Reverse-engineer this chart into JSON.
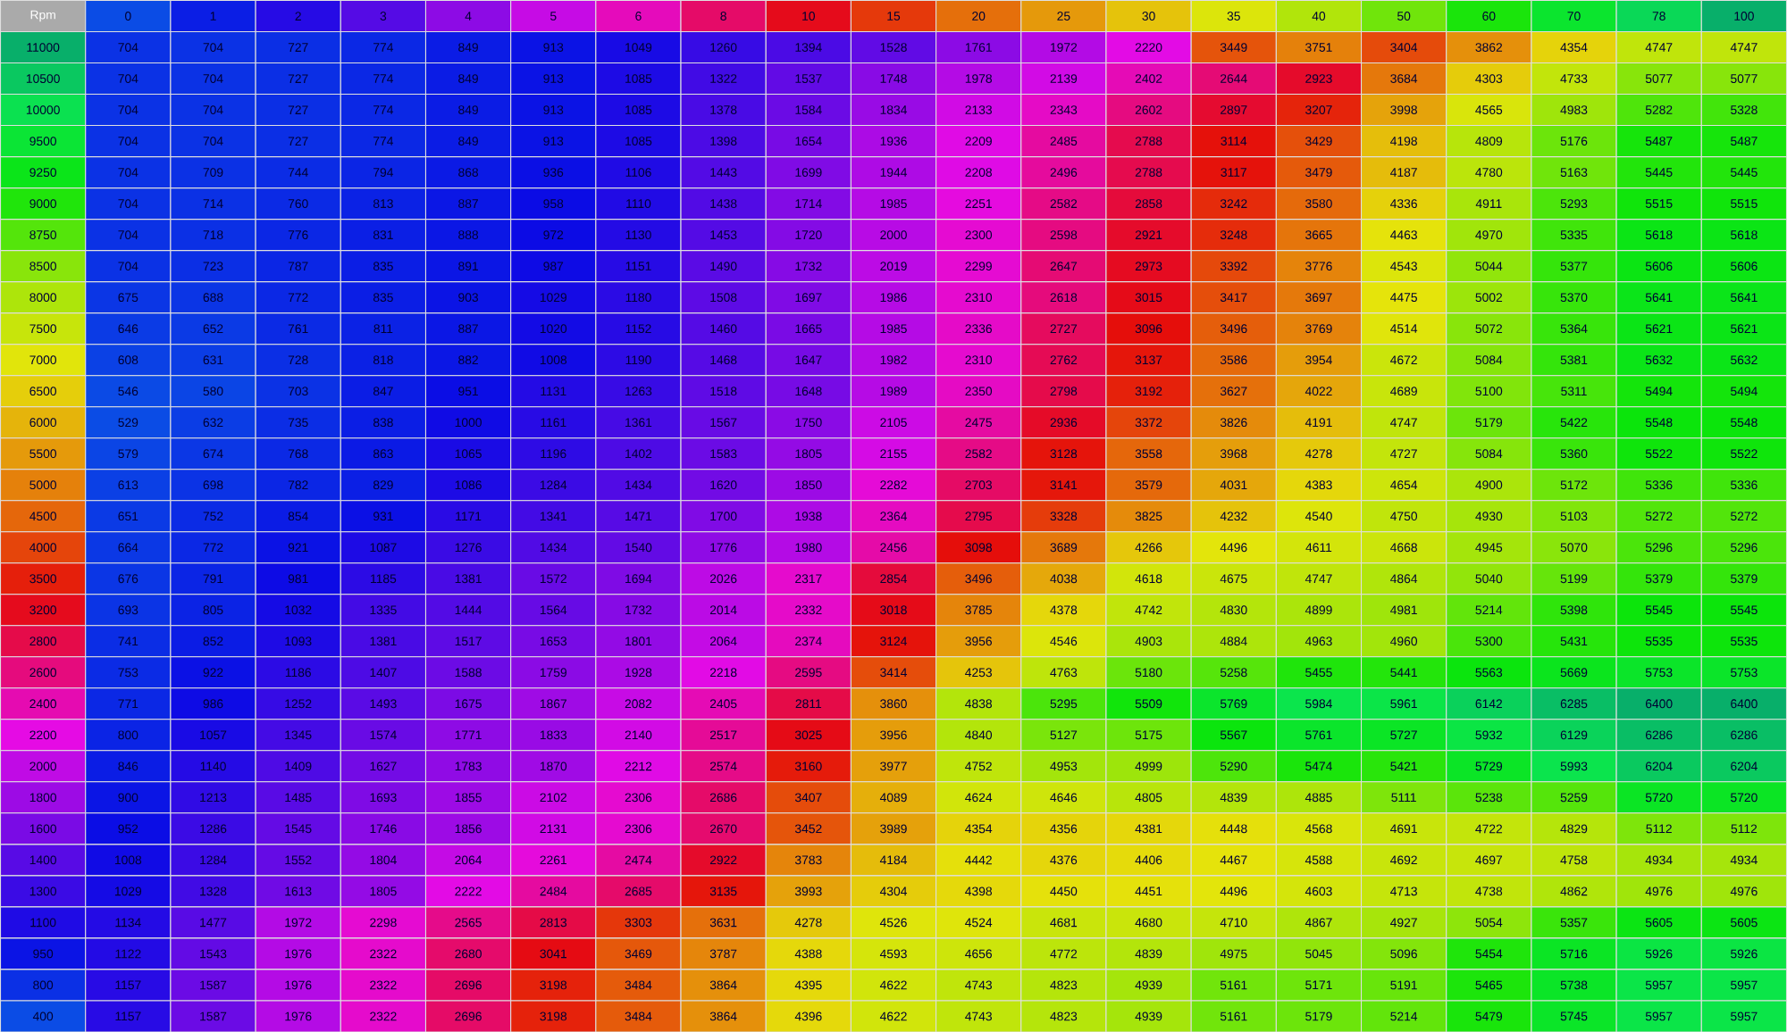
{
  "chart_data": {
    "type": "heatmap",
    "ylabel": "Rpm",
    "data_labels": true,
    "categories": [
      "0",
      "1",
      "2",
      "3",
      "4",
      "5",
      "6",
      "8",
      "10",
      "15",
      "20",
      "25",
      "30",
      "35",
      "40",
      "50",
      "60",
      "70",
      "78",
      "100"
    ],
    "y_categories": [
      "11000",
      "10500",
      "10000",
      "9500",
      "9250",
      "9000",
      "8750",
      "8500",
      "8000",
      "7500",
      "7000",
      "6500",
      "6000",
      "5500",
      "5000",
      "4500",
      "4000",
      "3500",
      "3200",
      "2800",
      "2600",
      "2400",
      "2200",
      "2000",
      "1800",
      "1600",
      "1400",
      "1300",
      "1100",
      "950",
      "800",
      "400"
    ],
    "cells": [
      [
        704,
        704,
        727,
        774,
        849,
        913,
        1049,
        1260,
        1394,
        1528,
        1761,
        1972,
        2220,
        3449,
        3751,
        3404,
        3862,
        4354,
        4747,
        4747
      ],
      [
        704,
        704,
        727,
        774,
        849,
        913,
        1085,
        1322,
        1537,
        1748,
        1978,
        2139,
        2402,
        2644,
        2923,
        3684,
        4303,
        4733,
        5077,
        5077
      ],
      [
        704,
        704,
        727,
        774,
        849,
        913,
        1085,
        1378,
        1584,
        1834,
        2133,
        2343,
        2602,
        2897,
        3207,
        3998,
        4565,
        4983,
        5282,
        5328
      ],
      [
        704,
        704,
        727,
        774,
        849,
        913,
        1085,
        1398,
        1654,
        1936,
        2209,
        2485,
        2788,
        3114,
        3429,
        4198,
        4809,
        5176,
        5487,
        5487
      ],
      [
        704,
        709,
        744,
        794,
        868,
        936,
        1106,
        1443,
        1699,
        1944,
        2208,
        2496,
        2788,
        3117,
        3479,
        4187,
        4780,
        5163,
        5445,
        5445
      ],
      [
        704,
        714,
        760,
        813,
        887,
        958,
        1110,
        1438,
        1714,
        1985,
        2251,
        2582,
        2858,
        3242,
        3580,
        4336,
        4911,
        5293,
        5515,
        5515
      ],
      [
        704,
        718,
        776,
        831,
        888,
        972,
        1130,
        1453,
        1720,
        2000,
        2300,
        2598,
        2921,
        3248,
        3665,
        4463,
        4970,
        5335,
        5618,
        5618
      ],
      [
        704,
        723,
        787,
        835,
        891,
        987,
        1151,
        1490,
        1732,
        2019,
        2299,
        2647,
        2973,
        3392,
        3776,
        4543,
        5044,
        5377,
        5606,
        5606
      ],
      [
        675,
        688,
        772,
        835,
        903,
        1029,
        1180,
        1508,
        1697,
        1986,
        2310,
        2618,
        3015,
        3417,
        3697,
        4475,
        5002,
        5370,
        5641,
        5641
      ],
      [
        646,
        652,
        761,
        811,
        887,
        1020,
        1152,
        1460,
        1665,
        1985,
        2336,
        2727,
        3096,
        3496,
        3769,
        4514,
        5072,
        5364,
        5621,
        5621
      ],
      [
        608,
        631,
        728,
        818,
        882,
        1008,
        1190,
        1468,
        1647,
        1982,
        2310,
        2762,
        3137,
        3586,
        3954,
        4672,
        5084,
        5381,
        5632,
        5632
      ],
      [
        546,
        580,
        703,
        847,
        951,
        1131,
        1263,
        1518,
        1648,
        1989,
        2350,
        2798,
        3192,
        3627,
        4022,
        4689,
        5100,
        5311,
        5494,
        5494
      ],
      [
        529,
        632,
        735,
        838,
        1000,
        1161,
        1361,
        1567,
        1750,
        2105,
        2475,
        2936,
        3372,
        3826,
        4191,
        4747,
        5179,
        5422,
        5548,
        5548
      ],
      [
        579,
        674,
        768,
        863,
        1065,
        1196,
        1402,
        1583,
        1805,
        2155,
        2582,
        3128,
        3558,
        3968,
        4278,
        4727,
        5084,
        5360,
        5522,
        5522
      ],
      [
        613,
        698,
        782,
        829,
        1086,
        1284,
        1434,
        1620,
        1850,
        2282,
        2703,
        3141,
        3579,
        4031,
        4383,
        4654,
        4900,
        5172,
        5336,
        5336
      ],
      [
        651,
        752,
        854,
        931,
        1171,
        1341,
        1471,
        1700,
        1938,
        2364,
        2795,
        3328,
        3825,
        4232,
        4540,
        4750,
        4930,
        5103,
        5272,
        5272
      ],
      [
        664,
        772,
        921,
        1087,
        1276,
        1434,
        1540,
        1776,
        1980,
        2456,
        3098,
        3689,
        4266,
        4496,
        4611,
        4668,
        4945,
        5070,
        5296,
        5296
      ],
      [
        676,
        791,
        981,
        1185,
        1381,
        1572,
        1694,
        2026,
        2317,
        2854,
        3496,
        4038,
        4618,
        4675,
        4747,
        4864,
        5040,
        5199,
        5379,
        5379
      ],
      [
        693,
        805,
        1032,
        1335,
        1444,
        1564,
        1732,
        2014,
        2332,
        3018,
        3785,
        4378,
        4742,
        4830,
        4899,
        4981,
        5214,
        5398,
        5545,
        5545
      ],
      [
        741,
        852,
        1093,
        1381,
        1517,
        1653,
        1801,
        2064,
        2374,
        3124,
        3956,
        4546,
        4903,
        4884,
        4963,
        4960,
        5300,
        5431,
        5535,
        5535
      ],
      [
        753,
        922,
        1186,
        1407,
        1588,
        1759,
        1928,
        2218,
        2595,
        3414,
        4253,
        4763,
        5180,
        5258,
        5455,
        5441,
        5563,
        5669,
        5753,
        5753
      ],
      [
        771,
        986,
        1252,
        1493,
        1675,
        1867,
        2082,
        2405,
        2811,
        3860,
        4838,
        5295,
        5509,
        5769,
        5984,
        5961,
        6142,
        6285,
        6400,
        6400
      ],
      [
        800,
        1057,
        1345,
        1574,
        1771,
        1833,
        2140,
        2517,
        3025,
        3956,
        4840,
        5127,
        5175,
        5567,
        5761,
        5727,
        5932,
        6129,
        6286,
        6286
      ],
      [
        846,
        1140,
        1409,
        1627,
        1783,
        1870,
        2212,
        2574,
        3160,
        3977,
        4752,
        4953,
        4999,
        5290,
        5474,
        5421,
        5729,
        5993,
        6204,
        6204
      ],
      [
        900,
        1213,
        1485,
        1693,
        1855,
        2102,
        2306,
        2686,
        3407,
        4089,
        4624,
        4646,
        4805,
        4839,
        4885,
        5111,
        5238,
        5259,
        5720,
        5720
      ],
      [
        952,
        1286,
        1545,
        1746,
        1856,
        2131,
        2306,
        2670,
        3452,
        3989,
        4354,
        4356,
        4381,
        4448,
        4568,
        4691,
        4722,
        4829,
        5112,
        5112
      ],
      [
        1008,
        1284,
        1552,
        1804,
        2064,
        2261,
        2474,
        2922,
        3783,
        4184,
        4442,
        4376,
        4406,
        4467,
        4588,
        4692,
        4697,
        4758,
        4934,
        4934
      ],
      [
        1029,
        1328,
        1613,
        1805,
        2222,
        2484,
        2685,
        3135,
        3993,
        4304,
        4398,
        4450,
        4451,
        4496,
        4603,
        4713,
        4738,
        4862,
        4976,
        4976
      ],
      [
        1134,
        1477,
        1972,
        2298,
        2565,
        2813,
        3303,
        3631,
        4278,
        4526,
        4524,
        4681,
        4680,
        4710,
        4867,
        4927,
        5054,
        5357,
        5605,
        5605
      ],
      [
        1122,
        1543,
        1976,
        2322,
        2680,
        3041,
        3469,
        3787,
        4388,
        4593,
        4656,
        4772,
        4839,
        4975,
        5045,
        5096,
        5454,
        5716,
        5926,
        5926
      ],
      [
        1157,
        1587,
        1976,
        2322,
        2696,
        3198,
        3484,
        3864,
        4395,
        4622,
        4743,
        4823,
        4939,
        5161,
        5171,
        5191,
        5465,
        5738,
        5957,
        5957
      ],
      [
        1157,
        1587,
        1976,
        2322,
        2696,
        3198,
        3484,
        3864,
        4396,
        4622,
        4743,
        4823,
        4939,
        5161,
        5179,
        5214,
        5479,
        5745,
        5957,
        5957
      ]
    ]
  }
}
